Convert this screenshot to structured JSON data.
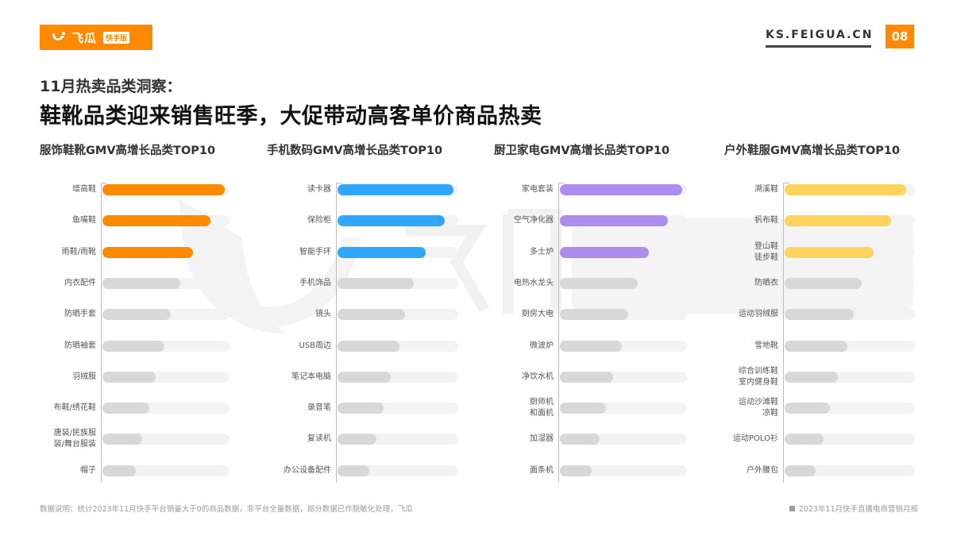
{
  "header": {
    "logo_text": "飞瓜",
    "logo_badge": "快手版",
    "site": "KS.FEIGUA.CN",
    "page_number": "08",
    "accent_color": "#ff8a00"
  },
  "subtitle": "11月热卖品类洞察：",
  "title": "鞋靴品类迎来销售旺季，大促带动高客单价商品热卖",
  "watermark": {
    "brand": "飞瓜",
    "badge": "快手版"
  },
  "footer": {
    "note": "数据说明：统计2023年11月快手平台销量大于0的商品数据，非平台全量数据，部分数据已作脱敏化处理，飞瓜",
    "report": "2023年11月快手直播电商营销月报"
  },
  "chart_data": [
    {
      "type": "bar",
      "orientation": "horizontal",
      "title": "服饰鞋靴GMV高增长品类TOP10",
      "highlight_color": "#ff8a00",
      "base_color": "#d8d8d8",
      "track_color": "#f3f3f3",
      "highlight_top_n": 3,
      "value_scale": "relative (% of track)",
      "categories": [
        "增高鞋",
        "鱼嘴鞋",
        "雨鞋/雨靴",
        "内衣配件",
        "防晒手套",
        "防晒袖套",
        "羽绒服",
        "布鞋/绣花鞋",
        "唐装/民族服装/舞台服装",
        "帽子"
      ],
      "labels": [
        "增高鞋",
        "鱼嘴鞋",
        "雨鞋/雨靴",
        "内衣配件",
        "防晒手套",
        "防晒袖套",
        "羽绒服",
        "布鞋/绣花鞋",
        "唐装/民族服\n装/舞台服装",
        "帽子"
      ],
      "values": [
        96,
        85,
        71,
        61,
        54,
        49,
        42,
        37,
        31,
        26
      ],
      "grid": false,
      "legend": "none"
    },
    {
      "type": "bar",
      "orientation": "horizontal",
      "title": "手机数码GMV高增长品类TOP10",
      "highlight_color": "#2fa7ff",
      "base_color": "#d8d8d8",
      "track_color": "#f3f3f3",
      "highlight_top_n": 3,
      "value_scale": "relative (% of track)",
      "categories": [
        "读卡器",
        "保险柜",
        "智能手环",
        "手机饰品",
        "镜头",
        "USB周边",
        "笔记本电脑",
        "录音笔",
        "复读机",
        "办公设备配件"
      ],
      "labels": [
        "读卡器",
        "保险柜",
        "智能手环",
        "手机饰品",
        "镜头",
        "USB周边",
        "笔记本电脑",
        "录音笔",
        "复读机",
        "办公设备配件"
      ],
      "values": [
        96,
        89,
        73,
        63,
        56,
        51,
        44,
        38,
        32,
        26
      ],
      "grid": false,
      "legend": "none"
    },
    {
      "type": "bar",
      "orientation": "horizontal",
      "title": "厨卫家电GMV高增长品类TOP10",
      "highlight_color": "#ad8cf0",
      "base_color": "#d8d8d8",
      "track_color": "#f3f3f3",
      "highlight_top_n": 3,
      "value_scale": "relative (% of track)",
      "categories": [
        "家电套装",
        "空气净化器",
        "多士炉",
        "电热水龙头",
        "厨房大电",
        "微波炉",
        "净饮水机",
        "厨师机和面机",
        "加湿器",
        "面条机"
      ],
      "labels": [
        "家电套装",
        "空气净化器",
        "多士炉",
        "电热水龙头",
        "厨房大电",
        "微波炉",
        "净饮水机",
        "厨师机\n和面机",
        "加湿器",
        "面条机"
      ],
      "values": [
        96,
        85,
        70,
        61,
        54,
        49,
        42,
        36,
        31,
        25
      ],
      "grid": false,
      "legend": "none"
    },
    {
      "type": "bar",
      "orientation": "horizontal",
      "title": "户外鞋服GMV高增长品类TOP10",
      "highlight_color": "#ffd35c",
      "base_color": "#d8d8d8",
      "track_color": "#f3f3f3",
      "highlight_top_n": 3,
      "value_scale": "relative (% of track)",
      "categories": [
        "溯溪鞋",
        "帆布鞋",
        "登山鞋徒步鞋",
        "防晒衣",
        "运动羽绒服",
        "雪地靴",
        "综合训练鞋室内健身鞋",
        "运动沙滩鞋凉鞋",
        "运动POLO衫",
        "户外腰包"
      ],
      "labels": [
        "溯溪鞋",
        "帆布鞋",
        "登山鞋\n徒步鞋",
        "防晒衣",
        "运动羽绒服",
        "雪地靴",
        "综合训练鞋\n室内健身鞋",
        "运动沙滩鞋\n凉鞋",
        "运动POLO衫",
        "户外腰包"
      ],
      "values": [
        93,
        82,
        68,
        59,
        53,
        48,
        41,
        35,
        30,
        24
      ],
      "grid": false,
      "legend": "none"
    }
  ]
}
